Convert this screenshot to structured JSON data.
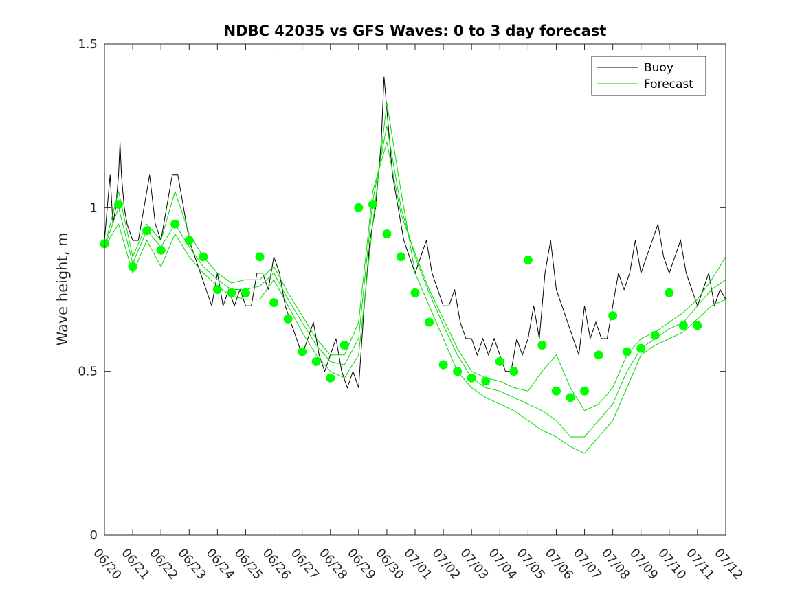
{
  "chart_data": {
    "type": "line",
    "title": "NDBC 42035 vs GFS Waves: 0 to 3 day forecast",
    "xlabel": "",
    "ylabel": "Wave height, m",
    "xlim": [
      0,
      22
    ],
    "ylim": [
      0,
      1.5
    ],
    "yticks": [
      0,
      0.5,
      1,
      1.5
    ],
    "ytick_labels": [
      "0",
      "0.5",
      "1",
      "1.5"
    ],
    "xticks": [
      0,
      1,
      2,
      3,
      4,
      5,
      6,
      7,
      8,
      9,
      10,
      11,
      12,
      13,
      14,
      15,
      16,
      17,
      18,
      19,
      20,
      21,
      22
    ],
    "xtick_labels": [
      "06/20",
      "06/21",
      "06/22",
      "06/23",
      "06/24",
      "06/25",
      "06/26",
      "06/27",
      "06/28",
      "06/29",
      "06/30",
      "07/01",
      "07/02",
      "07/03",
      "07/04",
      "07/05",
      "07/06",
      "07/07",
      "07/08",
      "07/09",
      "07/10",
      "07/11",
      "07/12"
    ],
    "grid": false,
    "legend_position": "top-right",
    "series": [
      {
        "name": "Buoy",
        "color": "#000000",
        "style": "line",
        "x": [
          0,
          0.1,
          0.2,
          0.3,
          0.4,
          0.5,
          0.55,
          0.6,
          0.7,
          0.8,
          1.0,
          1.2,
          1.4,
          1.6,
          1.8,
          2.0,
          2.2,
          2.4,
          2.6,
          2.8,
          3.0,
          3.2,
          3.4,
          3.6,
          3.8,
          4.0,
          4.2,
          4.4,
          4.6,
          4.8,
          5.0,
          5.2,
          5.4,
          5.6,
          5.8,
          6.0,
          6.2,
          6.4,
          6.6,
          6.8,
          7.0,
          7.2,
          7.4,
          7.6,
          7.8,
          8.0,
          8.2,
          8.4,
          8.6,
          8.8,
          9.0,
          9.2,
          9.4,
          9.6,
          9.8,
          9.9,
          10.0,
          10.2,
          10.4,
          10.6,
          10.8,
          11.0,
          11.2,
          11.4,
          11.6,
          11.8,
          12.0,
          12.2,
          12.4,
          12.6,
          12.8,
          13.0,
          13.2,
          13.4,
          13.6,
          13.8,
          14.0,
          14.2,
          14.4,
          14.6,
          14.8,
          15.0,
          15.2,
          15.4,
          15.6,
          15.8,
          16.0,
          16.2,
          16.4,
          16.6,
          16.8,
          17.0,
          17.2,
          17.4,
          17.6,
          17.8,
          18.0,
          18.2,
          18.4,
          18.6,
          18.8,
          19.0,
          19.2,
          19.4,
          19.6,
          19.8,
          20.0,
          20.2,
          20.4,
          20.6,
          20.8,
          21.0,
          21.2,
          21.4,
          21.6,
          21.8,
          22.0
        ],
        "y": [
          0.9,
          1.0,
          1.1,
          0.95,
          1.0,
          1.1,
          1.2,
          1.1,
          1.0,
          0.95,
          0.9,
          0.9,
          1.0,
          1.1,
          0.95,
          0.9,
          1.0,
          1.1,
          1.1,
          1.0,
          0.9,
          0.85,
          0.8,
          0.75,
          0.7,
          0.8,
          0.7,
          0.75,
          0.7,
          0.75,
          0.7,
          0.7,
          0.8,
          0.8,
          0.75,
          0.85,
          0.8,
          0.7,
          0.65,
          0.6,
          0.55,
          0.6,
          0.65,
          0.55,
          0.5,
          0.55,
          0.6,
          0.5,
          0.45,
          0.5,
          0.45,
          0.7,
          0.9,
          1.0,
          1.2,
          1.4,
          1.3,
          1.1,
          1.0,
          0.9,
          0.85,
          0.8,
          0.85,
          0.9,
          0.8,
          0.75,
          0.7,
          0.7,
          0.75,
          0.65,
          0.6,
          0.6,
          0.55,
          0.6,
          0.55,
          0.6,
          0.55,
          0.5,
          0.5,
          0.6,
          0.55,
          0.6,
          0.7,
          0.6,
          0.8,
          0.9,
          0.75,
          0.7,
          0.65,
          0.6,
          0.55,
          0.7,
          0.6,
          0.65,
          0.6,
          0.6,
          0.7,
          0.8,
          0.75,
          0.8,
          0.9,
          0.8,
          0.85,
          0.9,
          0.95,
          0.85,
          0.8,
          0.85,
          0.9,
          0.8,
          0.75,
          0.7,
          0.75,
          0.8,
          0.7,
          0.75,
          0.72
        ]
      },
      {
        "name": "Forecast",
        "color": "#00dd00",
        "style": "line",
        "x": [
          0,
          0.5,
          1.0,
          1.5,
          2.0,
          2.5,
          3.0,
          3.5,
          4.0,
          4.5,
          5.0,
          5.5,
          6.0,
          6.5,
          7.0,
          7.5,
          8.0,
          8.5,
          9.0,
          9.5,
          10.0,
          10.5,
          11.0,
          11.5,
          12.0,
          12.5,
          13.0,
          13.5,
          14.0,
          14.5,
          15.0,
          15.5,
          16.0,
          16.5,
          17.0,
          17.5,
          18.0,
          18.5,
          19.0,
          19.5,
          20.0,
          20.5,
          21.0,
          21.5,
          22.0
        ],
        "y": [
          0.88,
          1.0,
          0.83,
          0.93,
          0.88,
          0.95,
          0.88,
          0.82,
          0.78,
          0.75,
          0.75,
          0.76,
          0.8,
          0.72,
          0.65,
          0.58,
          0.53,
          0.52,
          0.6,
          1.02,
          1.25,
          1.0,
          0.85,
          0.74,
          0.64,
          0.55,
          0.48,
          0.45,
          0.44,
          0.42,
          0.4,
          0.38,
          0.35,
          0.3,
          0.3,
          0.35,
          0.4,
          0.5,
          0.57,
          0.6,
          0.63,
          0.65,
          0.7,
          0.75,
          0.78
        ]
      },
      {
        "name": "",
        "color": "#00dd00",
        "style": "line",
        "x": [
          0,
          0.5,
          1.0,
          1.5,
          2.0,
          2.5,
          3.0,
          3.5,
          4.0,
          4.5,
          5.0,
          5.5,
          6.0,
          6.5,
          7.0,
          7.5,
          8.0,
          8.5,
          9.0,
          9.5,
          10.0,
          10.5,
          11.0,
          11.5,
          12.0,
          12.5,
          13.0,
          13.5,
          14.0,
          14.5,
          15.0,
          15.5,
          16.0,
          16.5,
          17.0,
          17.5,
          18.0,
          18.5,
          19.0,
          19.5,
          20.0,
          20.5,
          21.0,
          21.5,
          22.0
        ],
        "y": [
          0.88,
          0.95,
          0.8,
          0.9,
          0.82,
          0.92,
          0.85,
          0.8,
          0.76,
          0.73,
          0.72,
          0.72,
          0.78,
          0.7,
          0.62,
          0.55,
          0.5,
          0.48,
          0.55,
          0.95,
          1.32,
          1.05,
          0.8,
          0.7,
          0.6,
          0.5,
          0.45,
          0.42,
          0.4,
          0.38,
          0.35,
          0.32,
          0.3,
          0.27,
          0.25,
          0.3,
          0.35,
          0.45,
          0.55,
          0.58,
          0.6,
          0.62,
          0.66,
          0.7,
          0.72
        ]
      },
      {
        "name": "",
        "color": "#00dd00",
        "style": "line",
        "x": [
          0,
          0.5,
          1.0,
          1.5,
          2.0,
          2.5,
          3.0,
          3.5,
          4.0,
          4.5,
          5.0,
          5.5,
          6.0,
          6.5,
          7.0,
          7.5,
          8.0,
          8.5,
          9.0,
          9.5,
          10.0,
          10.5,
          11.0,
          11.5,
          12.0,
          12.5,
          13.0,
          13.5,
          14.0,
          14.5,
          15.0,
          15.5,
          16.0,
          16.5,
          17.0,
          17.5,
          18.0,
          18.5,
          19.0,
          19.5,
          20.0,
          20.5,
          21.0,
          21.5,
          22.0
        ],
        "y": [
          0.88,
          1.05,
          0.85,
          0.95,
          0.9,
          1.05,
          0.92,
          0.85,
          0.8,
          0.77,
          0.78,
          0.78,
          0.82,
          0.74,
          0.67,
          0.6,
          0.55,
          0.55,
          0.65,
          1.05,
          1.2,
          0.98,
          0.86,
          0.75,
          0.66,
          0.57,
          0.5,
          0.48,
          0.47,
          0.45,
          0.44,
          0.5,
          0.55,
          0.45,
          0.38,
          0.4,
          0.45,
          0.55,
          0.6,
          0.62,
          0.65,
          0.68,
          0.72,
          0.78,
          0.85
        ]
      },
      {
        "name": "",
        "color": "#00ff00",
        "style": "markers",
        "x": [
          0,
          0.5,
          1.0,
          1.5,
          2.0,
          2.5,
          3.0,
          3.5,
          4.0,
          4.5,
          5.0,
          5.5,
          6.0,
          6.5,
          7.0,
          7.5,
          8.0,
          8.5,
          9.0,
          9.5,
          10.0,
          10.5,
          11.0,
          11.5,
          12.0,
          12.5,
          13.0,
          13.5,
          14.0,
          14.5,
          15.0,
          15.5,
          16.0,
          16.5,
          17.0,
          17.5,
          18.0,
          18.5,
          19.0,
          19.5,
          20.0,
          20.5,
          21.0
        ],
        "y": [
          0.89,
          1.01,
          0.82,
          0.93,
          0.87,
          0.95,
          0.9,
          0.85,
          0.75,
          0.74,
          0.74,
          0.85,
          0.71,
          0.66,
          0.56,
          0.53,
          0.48,
          0.58,
          1.0,
          1.01,
          0.92,
          0.85,
          0.74,
          0.65,
          0.52,
          0.5,
          0.48,
          0.47,
          0.53,
          0.5,
          0.84,
          0.58,
          0.44,
          0.42,
          0.44,
          0.55,
          0.67,
          0.56,
          0.57,
          0.61,
          0.74,
          0.64,
          0.64
        ]
      }
    ]
  }
}
